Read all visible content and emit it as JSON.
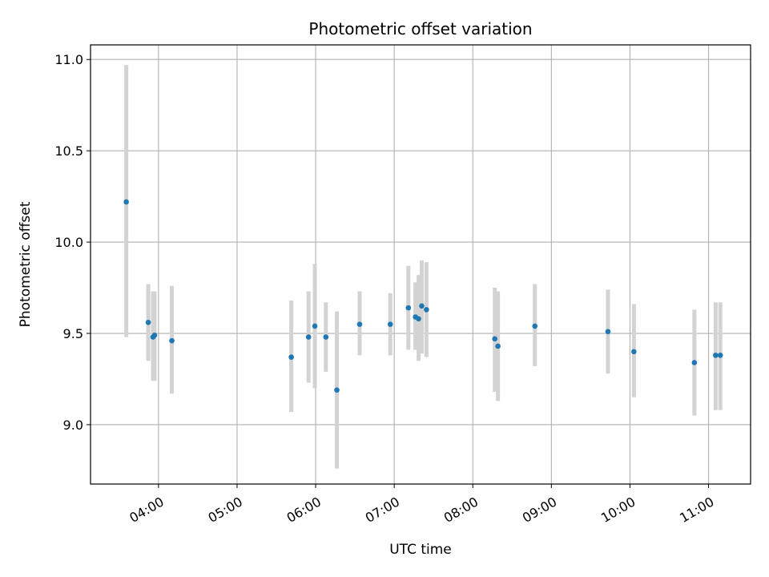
{
  "chart_data": {
    "type": "scatter",
    "title": "Photometric offset variation",
    "xlabel": "UTC time",
    "ylabel": "Photometric offset",
    "x_unit": "hours UTC",
    "xlim": [
      3.135,
      11.535
    ],
    "ylim": [
      8.675,
      11.08
    ],
    "grid": true,
    "x_ticks": [
      {
        "value": 4,
        "label": "04:00"
      },
      {
        "value": 5,
        "label": "05:00"
      },
      {
        "value": 6,
        "label": "06:00"
      },
      {
        "value": 7,
        "label": "07:00"
      },
      {
        "value": 8,
        "label": "08:00"
      },
      {
        "value": 9,
        "label": "09:00"
      },
      {
        "value": 10,
        "label": "10:00"
      },
      {
        "value": 11,
        "label": "11:00"
      }
    ],
    "y_ticks": [
      {
        "value": 9.0,
        "label": "9.0"
      },
      {
        "value": 9.5,
        "label": "9.5"
      },
      {
        "value": 10.0,
        "label": "10.0"
      },
      {
        "value": 10.5,
        "label": "10.5"
      },
      {
        "value": 11.0,
        "label": "11.0"
      }
    ],
    "colors": {
      "point": "#1f77b4",
      "errorbar": "#d3d3d3",
      "grid": "#b0b0b0"
    },
    "points": [
      {
        "time": "03:35",
        "x": 3.59,
        "y": 10.22,
        "ylow": 9.48,
        "yhigh": 10.97
      },
      {
        "time": "03:52",
        "x": 3.87,
        "y": 9.56,
        "ylow": 9.35,
        "yhigh": 9.77
      },
      {
        "time": "03:56",
        "x": 3.93,
        "y": 9.48,
        "ylow": 9.24,
        "yhigh": 9.73
      },
      {
        "time": "03:57",
        "x": 3.95,
        "y": 9.49,
        "ylow": 9.24,
        "yhigh": 9.73
      },
      {
        "time": "04:10",
        "x": 4.17,
        "y": 9.46,
        "ylow": 9.17,
        "yhigh": 9.76
      },
      {
        "time": "05:41",
        "x": 5.69,
        "y": 9.37,
        "ylow": 9.07,
        "yhigh": 9.68
      },
      {
        "time": "05:54",
        "x": 5.91,
        "y": 9.48,
        "ylow": 9.23,
        "yhigh": 9.73
      },
      {
        "time": "05:59",
        "x": 5.99,
        "y": 9.54,
        "ylow": 9.2,
        "yhigh": 9.88
      },
      {
        "time": "06:08",
        "x": 6.13,
        "y": 9.48,
        "ylow": 9.29,
        "yhigh": 9.67
      },
      {
        "time": "06:16",
        "x": 6.27,
        "y": 9.19,
        "ylow": 8.76,
        "yhigh": 9.62
      },
      {
        "time": "06:34",
        "x": 6.56,
        "y": 9.55,
        "ylow": 9.38,
        "yhigh": 9.73
      },
      {
        "time": "06:57",
        "x": 6.95,
        "y": 9.55,
        "ylow": 9.38,
        "yhigh": 9.72
      },
      {
        "time": "07:11",
        "x": 7.18,
        "y": 9.64,
        "ylow": 9.41,
        "yhigh": 9.87
      },
      {
        "time": "07:16",
        "x": 7.27,
        "y": 9.59,
        "ylow": 9.41,
        "yhigh": 9.78
      },
      {
        "time": "07:19",
        "x": 7.31,
        "y": 9.58,
        "ylow": 9.35,
        "yhigh": 9.82
      },
      {
        "time": "07:21",
        "x": 7.35,
        "y": 9.65,
        "ylow": 9.39,
        "yhigh": 9.9
      },
      {
        "time": "07:25",
        "x": 7.41,
        "y": 9.63,
        "ylow": 9.37,
        "yhigh": 9.89
      },
      {
        "time": "08:17",
        "x": 8.28,
        "y": 9.47,
        "ylow": 9.18,
        "yhigh": 9.75
      },
      {
        "time": "08:19",
        "x": 8.32,
        "y": 9.43,
        "ylow": 9.13,
        "yhigh": 9.73
      },
      {
        "time": "08:47",
        "x": 8.79,
        "y": 9.54,
        "ylow": 9.32,
        "yhigh": 9.77
      },
      {
        "time": "09:43",
        "x": 9.72,
        "y": 9.51,
        "ylow": 9.28,
        "yhigh": 9.74
      },
      {
        "time": "10:03",
        "x": 10.05,
        "y": 9.4,
        "ylow": 9.15,
        "yhigh": 9.66
      },
      {
        "time": "10:49",
        "x": 10.82,
        "y": 9.34,
        "ylow": 9.05,
        "yhigh": 9.63
      },
      {
        "time": "11:05",
        "x": 11.09,
        "y": 9.38,
        "ylow": 9.08,
        "yhigh": 9.67
      },
      {
        "time": "11:09",
        "x": 11.15,
        "y": 9.38,
        "ylow": 9.08,
        "yhigh": 9.67
      }
    ]
  }
}
